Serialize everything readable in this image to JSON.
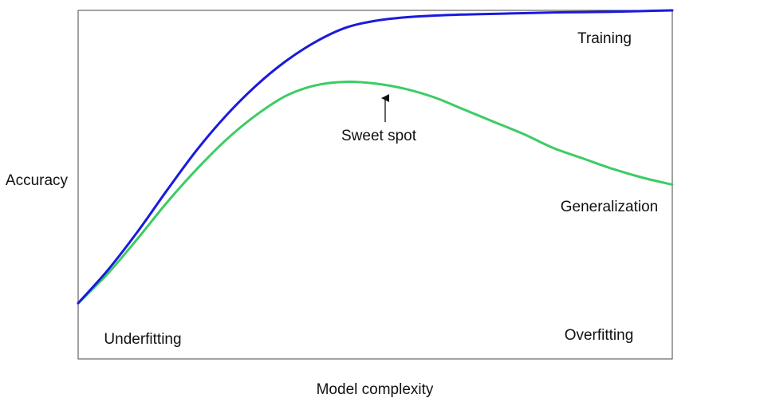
{
  "chart_data": {
    "type": "line",
    "title": "",
    "xlabel": "Model complexity",
    "ylabel": "Accuracy",
    "grid": false,
    "legend": "none",
    "axis_ticks": false,
    "x_range": [
      0,
      10
    ],
    "y_range": [
      0,
      10
    ],
    "series": [
      {
        "name": "Training",
        "color": "#1a1adc",
        "x": [
          0,
          0.5,
          1,
          1.5,
          2,
          2.5,
          3,
          3.5,
          4,
          4.5,
          5,
          5.5,
          6,
          6.5,
          7,
          7.5,
          8,
          8.5,
          9,
          9.5,
          10
        ],
        "y": [
          1.6,
          2.55,
          3.65,
          4.85,
          6.0,
          7.0,
          7.85,
          8.55,
          9.1,
          9.5,
          9.7,
          9.8,
          9.85,
          9.88,
          9.9,
          9.92,
          9.94,
          9.95,
          9.96,
          9.98,
          10.0
        ]
      },
      {
        "name": "Generalization",
        "color": "#3ccc64",
        "x": [
          0,
          0.5,
          1,
          1.5,
          2,
          2.5,
          3,
          3.5,
          4,
          4.5,
          5,
          5.5,
          6,
          6.5,
          7,
          7.5,
          8,
          8.5,
          9,
          9.5,
          10
        ],
        "y": [
          1.6,
          2.45,
          3.45,
          4.5,
          5.45,
          6.3,
          7.0,
          7.55,
          7.85,
          7.95,
          7.9,
          7.75,
          7.5,
          7.15,
          6.8,
          6.45,
          6.05,
          5.75,
          5.45,
          5.2,
          5.0
        ]
      }
    ],
    "annotations": {
      "sweet_spot": {
        "text": "Sweet spot",
        "x": 5.15,
        "y": 7.95
      },
      "training_label": {
        "text": "Training"
      },
      "generalization_label": {
        "text": "Generalization"
      },
      "underfitting": {
        "text": "Underfitting"
      },
      "overfitting": {
        "text": "Overfitting"
      }
    }
  }
}
